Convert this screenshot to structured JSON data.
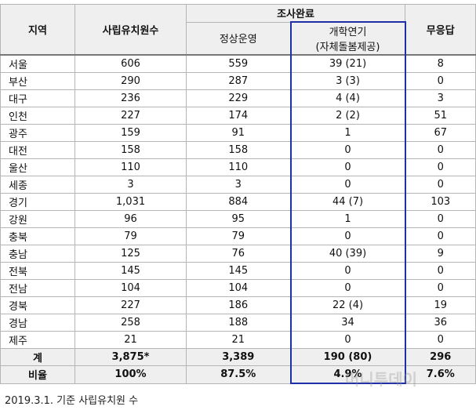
{
  "table": {
    "headers": {
      "region": "지역",
      "total": "사립유치원수",
      "survey": "조사완료",
      "normal": "정상운영",
      "delay": [
        "개학연기",
        "(자체돌봄제공)"
      ],
      "no_response": "무응답"
    },
    "rows": [
      [
        "서울",
        "606",
        "559",
        "39 (21)",
        "8"
      ],
      [
        "부산",
        "290",
        "287",
        "3 (3)",
        "0"
      ],
      [
        "대구",
        "236",
        "229",
        "4 (4)",
        "3"
      ],
      [
        "인천",
        "227",
        "174",
        "2 (2)",
        "51"
      ],
      [
        "광주",
        "159",
        "91",
        "1",
        "67"
      ],
      [
        "대전",
        "158",
        "158",
        "0",
        "0"
      ],
      [
        "울산",
        "110",
        "110",
        "0",
        "0"
      ],
      [
        "세종",
        "3",
        "3",
        "0",
        "0"
      ],
      [
        "경기",
        "1,031",
        "884",
        "44 (7)",
        "103"
      ],
      [
        "강원",
        "96",
        "95",
        "1",
        "0"
      ],
      [
        "충북",
        "79",
        "79",
        "0",
        "0"
      ],
      [
        "충남",
        "125",
        "76",
        "40 (39)",
        "9"
      ],
      [
        "전북",
        "145",
        "145",
        "0",
        "0"
      ],
      [
        "전남",
        "104",
        "104",
        "0",
        "0"
      ],
      [
        "경북",
        "227",
        "186",
        "22 (4)",
        "19"
      ],
      [
        "경남",
        "258",
        "188",
        "34",
        "36"
      ],
      [
        "제주",
        "21",
        "21",
        "0",
        "0"
      ]
    ],
    "total_row": [
      "계",
      "3,875*",
      "3,389",
      "190 (80)",
      "296"
    ],
    "ratio_row": [
      "비율",
      "100%",
      "87.5%",
      "4.9%",
      "7.6%"
    ]
  },
  "note": "2019.3.1. 기준 사립유치원 수",
  "watermark": "머니투데이"
}
